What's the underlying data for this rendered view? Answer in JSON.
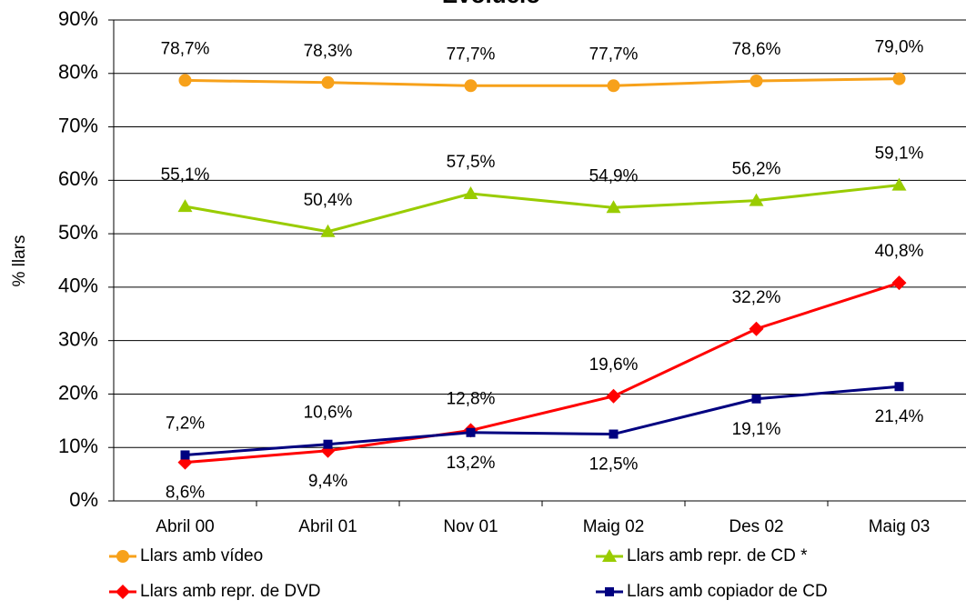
{
  "chart_data": {
    "type": "line",
    "title": "Evolució",
    "ylabel": "% llars",
    "categories": [
      "Abril 00",
      "Abril 01",
      "Nov 01",
      "Maig 02",
      "Des 02",
      "Maig 03"
    ],
    "ylim": [
      0,
      90
    ],
    "yticks": [
      {
        "value": 0,
        "label": "0%"
      },
      {
        "value": 10,
        "label": "10%"
      },
      {
        "value": 20,
        "label": "20%"
      },
      {
        "value": 30,
        "label": "30%"
      },
      {
        "value": 40,
        "label": "40%"
      },
      {
        "value": 50,
        "label": "50%"
      },
      {
        "value": 60,
        "label": "60%"
      },
      {
        "value": 70,
        "label": "70%"
      },
      {
        "value": 80,
        "label": "80%"
      },
      {
        "value": 90,
        "label": "90%"
      }
    ],
    "grid": true,
    "series": [
      {
        "name": "Llars amb vídeo",
        "color": "#f7a11a",
        "marker": "circle",
        "values": [
          78.7,
          78.3,
          77.7,
          77.7,
          78.6,
          79.0
        ],
        "value_labels": [
          "78,7%",
          "78,3%",
          "77,7%",
          "77,7%",
          "78,6%",
          "79,0%"
        ]
      },
      {
        "name": "Llars amb repr. de CD *",
        "color": "#99cc00",
        "marker": "triangle",
        "values": [
          55.1,
          50.4,
          57.5,
          54.9,
          56.2,
          59.1
        ],
        "value_labels": [
          "55,1%",
          "50,4%",
          "57,5%",
          "54,9%",
          "56,2%",
          "59,1%"
        ]
      },
      {
        "name": "Llars amb repr. de DVD",
        "color": "#ff0000",
        "marker": "diamond",
        "values": [
          7.2,
          9.4,
          13.2,
          19.6,
          32.2,
          40.8
        ],
        "value_labels": [
          "7,2%",
          "9,4%",
          "13,2%",
          "19,6%",
          "32,2%",
          "40,8%"
        ]
      },
      {
        "name": "Llars amb copiador de CD",
        "color": "#000080",
        "marker": "square",
        "values": [
          8.6,
          10.6,
          12.8,
          12.5,
          19.1,
          21.4
        ],
        "value_labels": [
          "8,6%",
          "10,6%",
          "12,8%",
          "12,5%",
          "19,1%",
          "21,4%"
        ]
      }
    ]
  }
}
